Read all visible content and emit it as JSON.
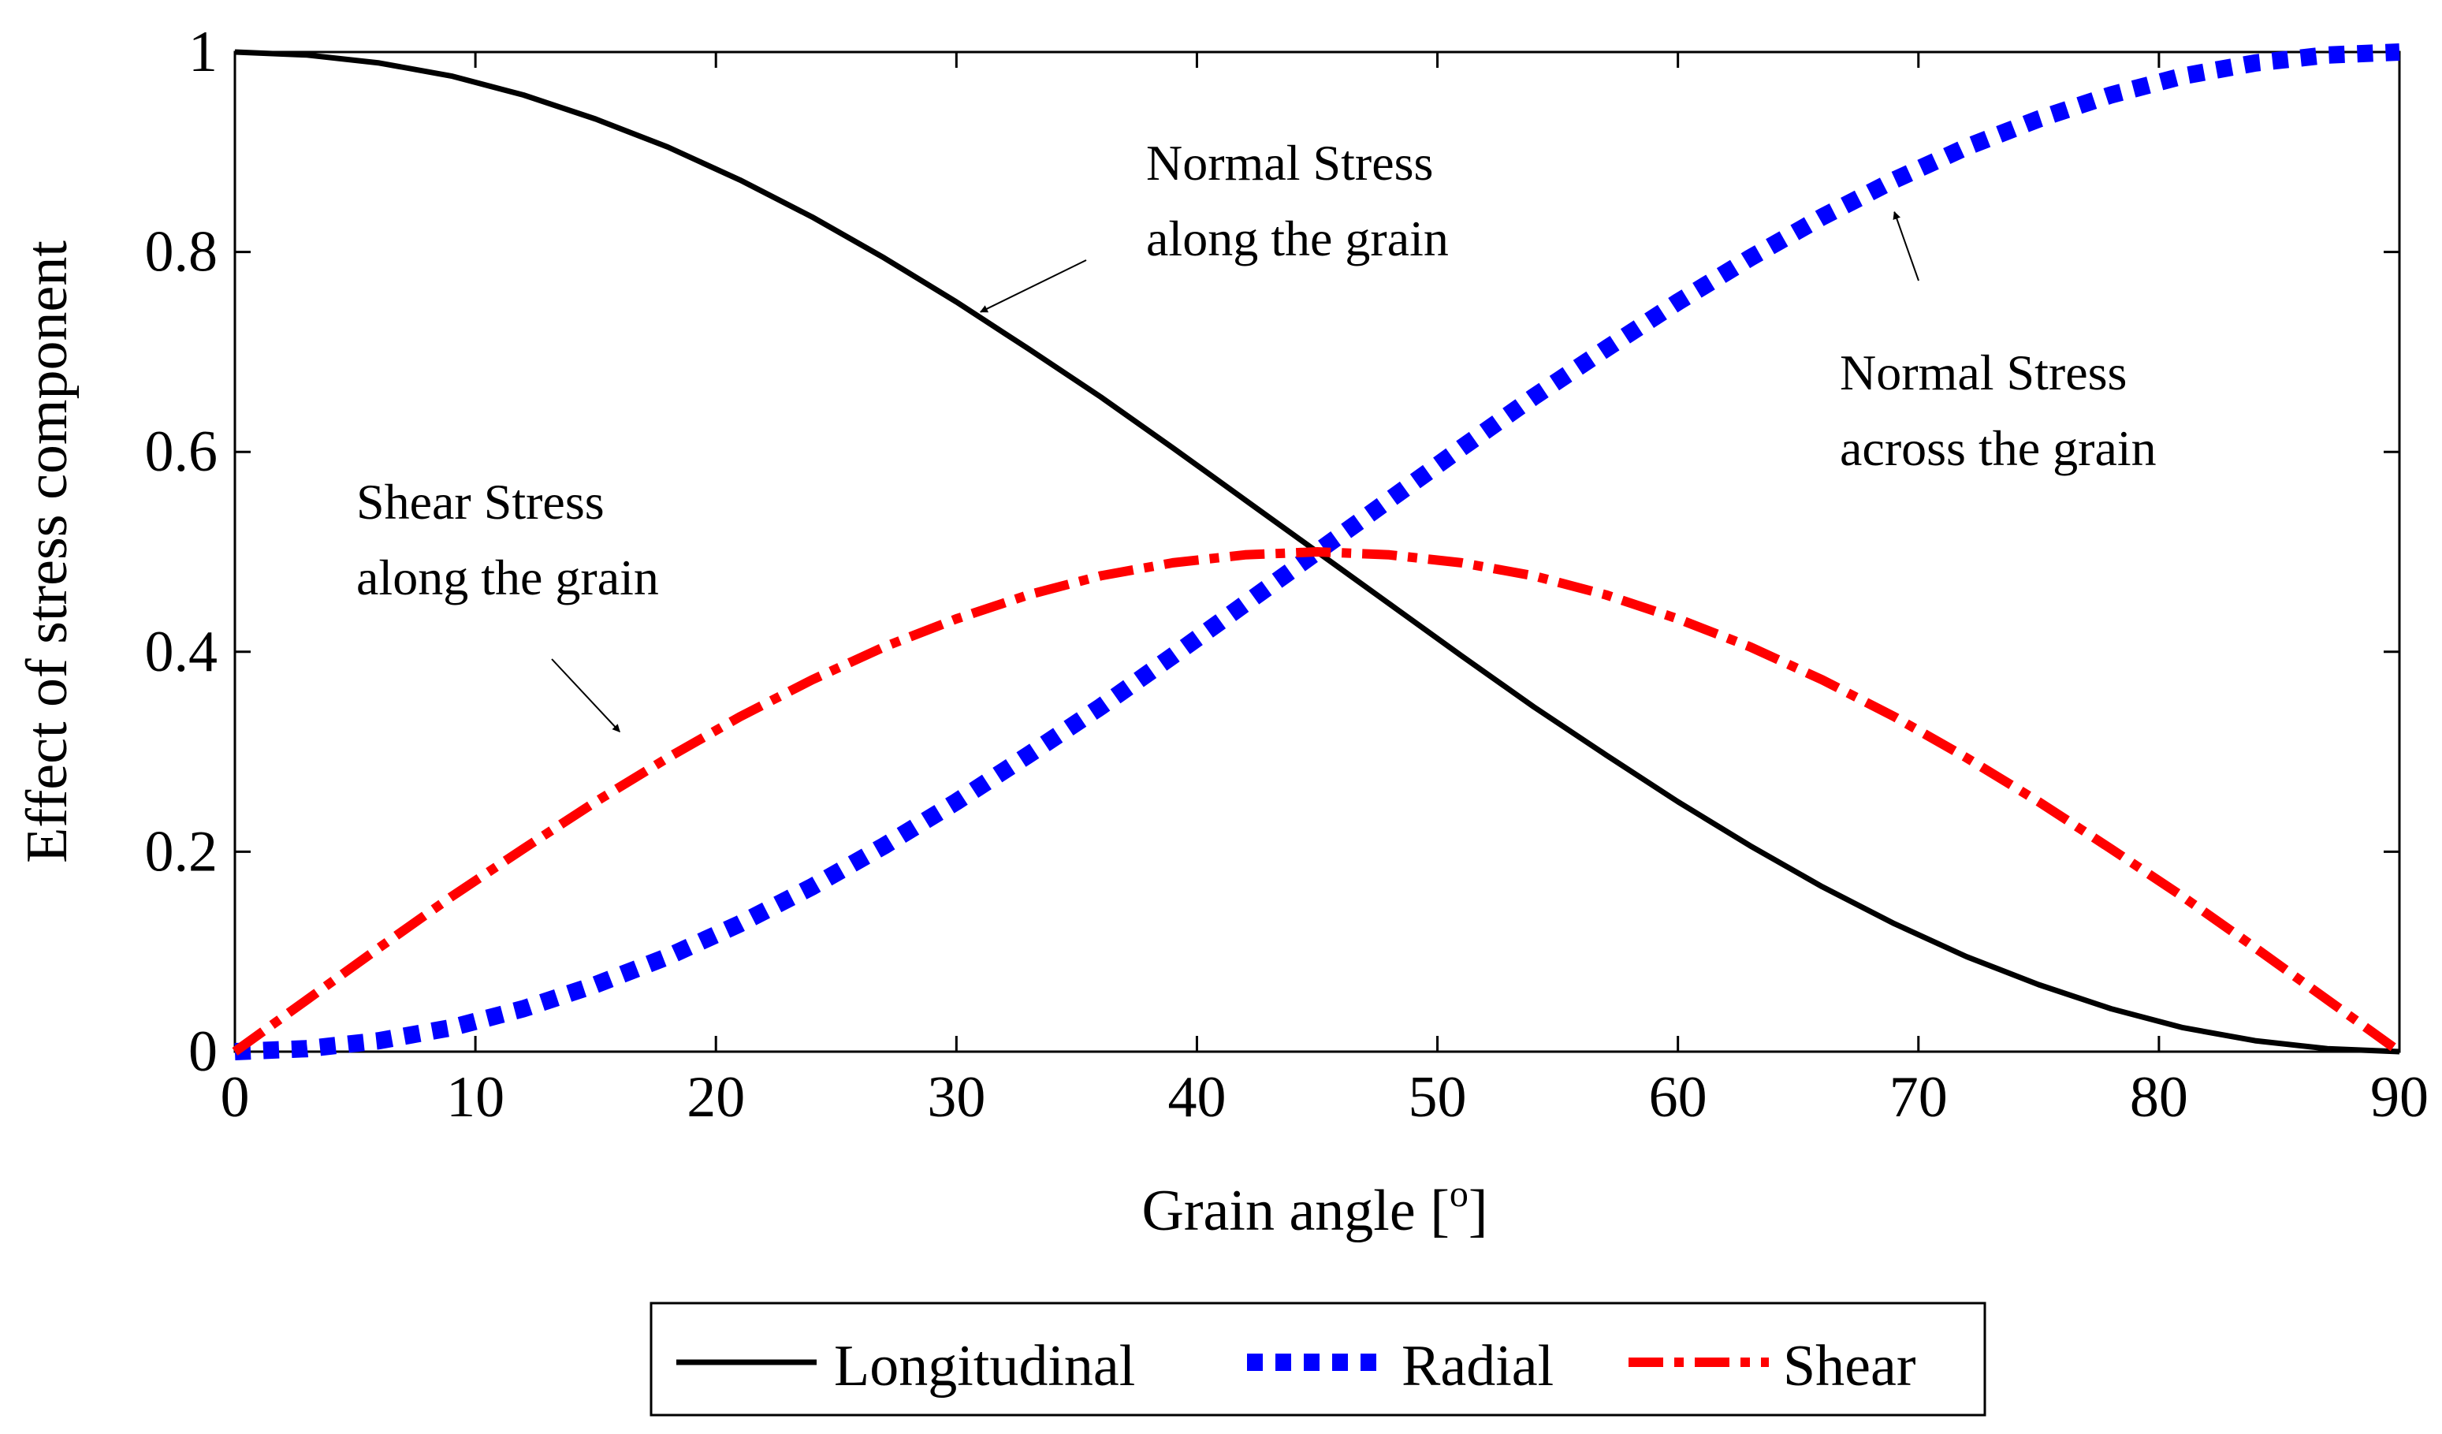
{
  "chart_data": {
    "type": "line",
    "title": "",
    "xlabel": "Grain angle [",
    "xlabel_sup": "o",
    "xlabel_close": "]",
    "ylabel": "Effect of stress component",
    "xlim": [
      0,
      90
    ],
    "ylim": [
      0,
      1
    ],
    "xticks": [
      "0",
      "10",
      "20",
      "30",
      "40",
      "50",
      "60",
      "70",
      "80",
      "90"
    ],
    "yticks": [
      "0",
      "0.2",
      "0.4",
      "0.6",
      "0.8",
      "1"
    ],
    "grid": false,
    "x": [
      0,
      3,
      6,
      9,
      12,
      15,
      18,
      21,
      24,
      27,
      30,
      33,
      36,
      39,
      42,
      45,
      48,
      51,
      54,
      57,
      60,
      63,
      66,
      69,
      72,
      75,
      78,
      81,
      84,
      87,
      90
    ],
    "series": [
      {
        "name": "Longitudinal",
        "color": "#000000",
        "style": "solid",
        "values": [
          1.0,
          0.997,
          0.989,
          0.976,
          0.957,
          0.933,
          0.905,
          0.872,
          0.835,
          0.794,
          0.75,
          0.703,
          0.655,
          0.604,
          0.552,
          0.5,
          0.448,
          0.396,
          0.345,
          0.297,
          0.25,
          0.206,
          0.165,
          0.128,
          0.095,
          0.067,
          0.043,
          0.024,
          0.011,
          0.003,
          0.0
        ]
      },
      {
        "name": "Radial",
        "color": "#0000ff",
        "style": "dotted",
        "values": [
          0.0,
          0.003,
          0.011,
          0.024,
          0.043,
          0.067,
          0.095,
          0.128,
          0.165,
          0.206,
          0.25,
          0.297,
          0.345,
          0.396,
          0.448,
          0.5,
          0.552,
          0.604,
          0.655,
          0.703,
          0.75,
          0.794,
          0.835,
          0.872,
          0.905,
          0.933,
          0.957,
          0.976,
          0.989,
          0.997,
          1.0
        ]
      },
      {
        "name": "Shear",
        "color": "#ff0000",
        "style": "dashdot",
        "values": [
          0.0,
          0.052,
          0.104,
          0.155,
          0.203,
          0.25,
          0.294,
          0.335,
          0.372,
          0.405,
          0.433,
          0.457,
          0.476,
          0.489,
          0.497,
          0.5,
          0.497,
          0.489,
          0.476,
          0.457,
          0.433,
          0.405,
          0.372,
          0.335,
          0.294,
          0.25,
          0.203,
          0.155,
          0.104,
          0.052,
          0.0
        ]
      }
    ],
    "annotations": [
      {
        "lines": [
          "Normal Stress",
          "along the grain"
        ],
        "arrow_to": [
          31,
          0.74
        ]
      },
      {
        "lines": [
          "Normal Stress",
          "across the grain"
        ],
        "arrow_to": [
          69,
          0.84
        ]
      },
      {
        "lines": [
          "Shear Stress",
          "along the grain"
        ],
        "arrow_to": [
          16,
          0.32
        ]
      }
    ],
    "legend": {
      "position": "bottom-center",
      "entries": [
        "Longitudinal",
        "Radial",
        "Shear"
      ]
    }
  }
}
